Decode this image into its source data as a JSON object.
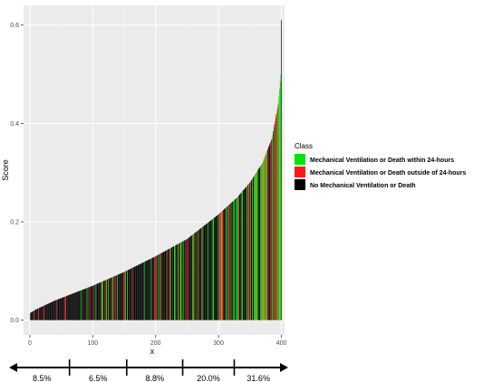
{
  "chart_data": {
    "type": "bar",
    "title": "",
    "xlabel": "x",
    "ylabel": "Score",
    "xlim": [
      -10,
      405
    ],
    "ylim": [
      -0.03,
      0.64
    ],
    "x_ticks": [
      0,
      100,
      200,
      300,
      400
    ],
    "x_tick_labels": [
      "0",
      "100",
      "200",
      "300",
      "400"
    ],
    "y_ticks": [
      0.0,
      0.2,
      0.4,
      0.6
    ],
    "y_tick_labels": [
      "0.0",
      "0.2",
      "0.4",
      "0.6"
    ],
    "grid": true,
    "n_bars": 400,
    "score_curve": [
      [
        1,
        0.015
      ],
      [
        10,
        0.022
      ],
      [
        40,
        0.04
      ],
      [
        100,
        0.07
      ],
      [
        150,
        0.098
      ],
      [
        200,
        0.13
      ],
      [
        250,
        0.165
      ],
      [
        300,
        0.215
      ],
      [
        330,
        0.25
      ],
      [
        350,
        0.28
      ],
      [
        370,
        0.32
      ],
      [
        385,
        0.37
      ],
      [
        395,
        0.44
      ],
      [
        399,
        0.5
      ],
      [
        400,
        0.61
      ]
    ],
    "legend": {
      "title": "Class",
      "placement": "right",
      "entries": [
        {
          "name": "Mechanical Ventilation or Death within 24-hours",
          "color": "#00e600"
        },
        {
          "name": "Mechanical Ventilation or Death outside of 24-hours",
          "color": "#ff1a1a"
        },
        {
          "name": "No Mechanical Ventilation or Death",
          "color": "#000000"
        }
      ]
    },
    "segments": [
      {
        "label": "8.5%",
        "from": -30,
        "to": 63
      },
      {
        "label": "6.5%",
        "from": 63,
        "to": 154
      },
      {
        "label": "8.8%",
        "from": 154,
        "to": 243
      },
      {
        "label": "20.0%",
        "from": 243,
        "to": 325
      },
      {
        "label": "31.6%",
        "from": 325,
        "to": 420
      }
    ]
  },
  "colors": {
    "panel": "#ebebeb",
    "grid_major": "#ffffff",
    "grid_minor": "#f5f5f5",
    "green": "#00e600",
    "red": "#ff1a1a",
    "black": "#000000"
  }
}
